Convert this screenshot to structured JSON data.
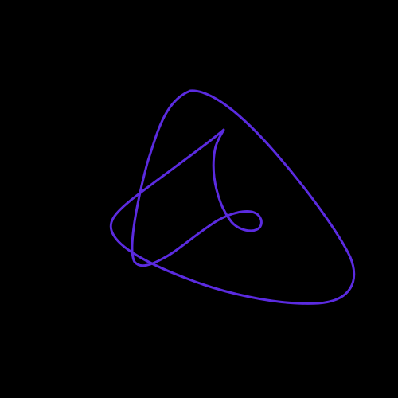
{
  "scene": {
    "background_color": "#000000",
    "stroke_color": "#5B2BE0",
    "shape": "closed-looping-curve"
  }
}
